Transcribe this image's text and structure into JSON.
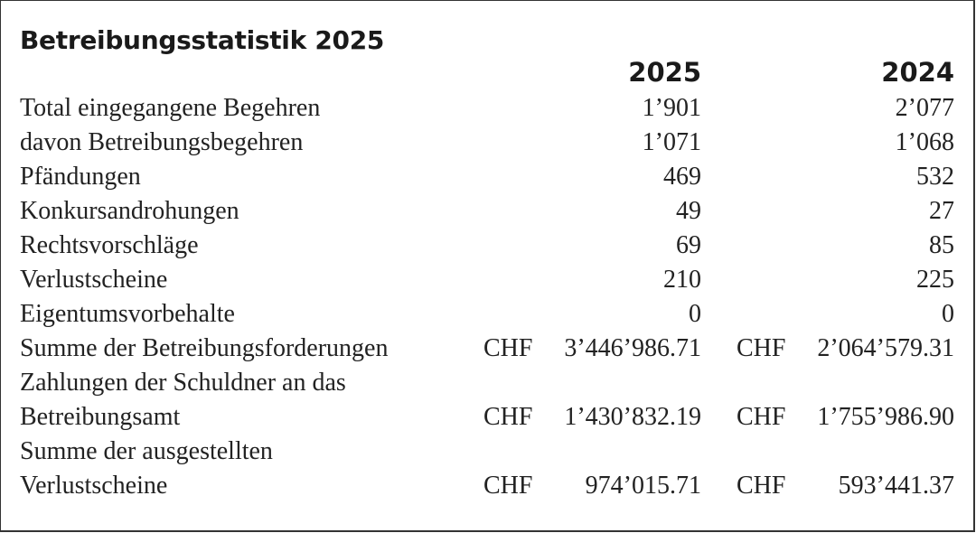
{
  "title": "Betreibungsstatistik 2025",
  "columns": [
    "2025",
    "2024"
  ],
  "currency": "CHF",
  "rows": [
    {
      "label": "Total eingegangene Begehren",
      "v2025": "1’901",
      "v2024": "2’077"
    },
    {
      "label": "davon Betreibungsbegehren",
      "v2025": "1’071",
      "v2024": "1’068"
    },
    {
      "label": "Pfändungen",
      "v2025": "469",
      "v2024": "532"
    },
    {
      "label": "Konkursandrohungen",
      "v2025": "49",
      "v2024": "27"
    },
    {
      "label": "Rechtsvorschläge",
      "v2025": "69",
      "v2024": "85"
    },
    {
      "label": "Verlustscheine",
      "v2025": "210",
      "v2024": "225"
    },
    {
      "label": "Eigentumsvorbehalte",
      "v2025": "0",
      "v2024": "0"
    }
  ],
  "money_rows": [
    {
      "label_lines": [
        "Summe der Betreibungsforderungen"
      ],
      "v2025": "3’446’986.71",
      "v2024": "2’064’579.31"
    },
    {
      "label_lines": [
        "Zahlungen der Schuldner an das",
        "Betreibungsamt"
      ],
      "v2025": "1’430’832.19",
      "v2024": "1’755’986.90"
    },
    {
      "label_lines": [
        "Summe der ausgestellten",
        "Verlustscheine"
      ],
      "v2025": "974’015.71",
      "v2024": "593’441.37"
    }
  ]
}
